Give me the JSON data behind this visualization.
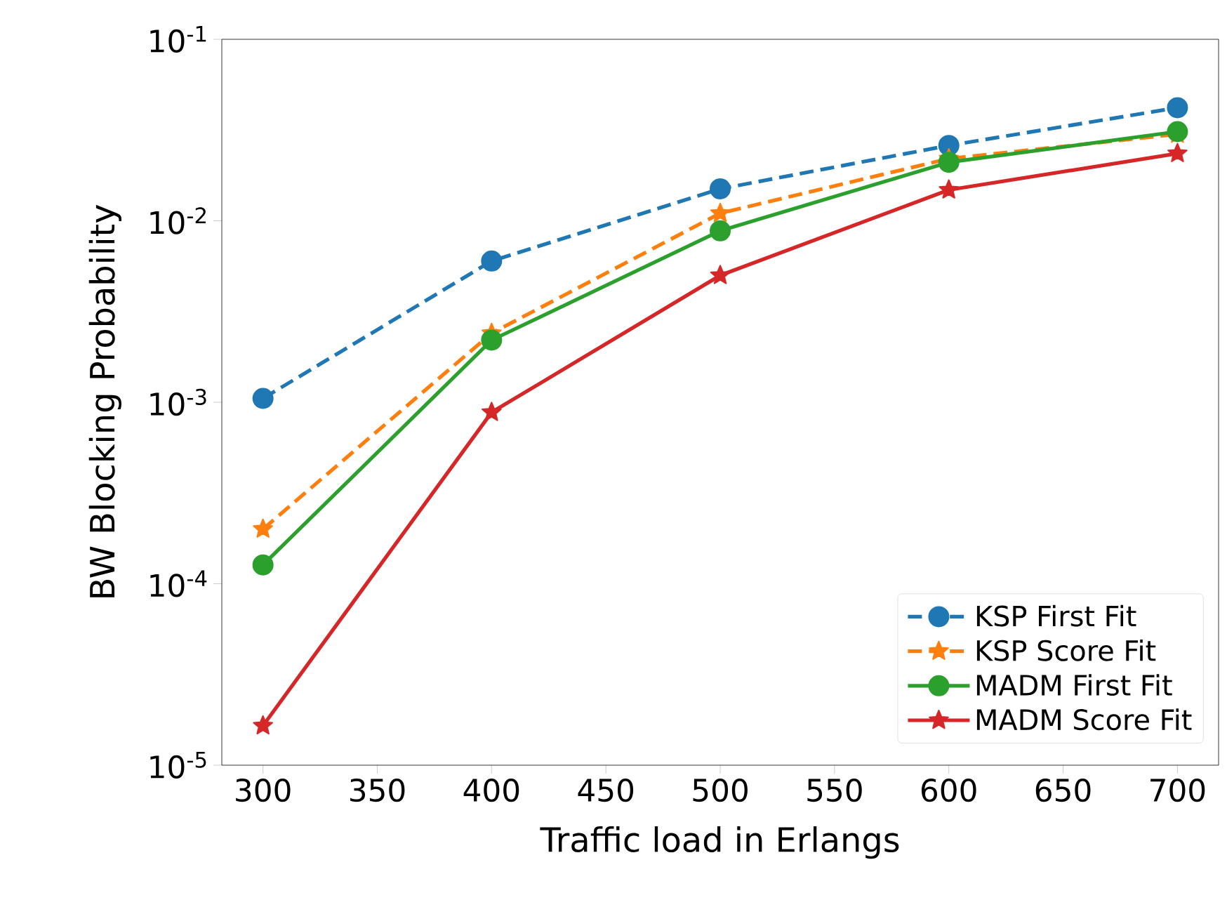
{
  "chart_data": {
    "type": "line",
    "xlabel": "Traffic load in Erlangs",
    "ylabel": "BW Blocking Probability",
    "log": "y",
    "x": [
      300,
      400,
      500,
      600,
      700
    ],
    "xlim": [
      282,
      718
    ],
    "xticks": [
      300,
      350,
      400,
      450,
      500,
      550,
      600,
      650,
      700
    ],
    "ylim": [
      1e-05,
      0.1
    ],
    "yticks": [
      {
        "value": 1e-05,
        "label": "10$^{-5}$"
      },
      {
        "value": 0.0001,
        "label": "10$^{-4}$"
      },
      {
        "value": 0.001,
        "label": "10$^{-3}$"
      },
      {
        "value": 0.01,
        "label": "10$^{-2}$"
      },
      {
        "value": 0.1,
        "label": "10$^{-1}$"
      }
    ],
    "legend": "bottom right",
    "grid": false,
    "series": [
      {
        "name": "KSP First Fit",
        "color": "#1f77b4",
        "marker": "circle",
        "line_style": "dashed",
        "values": [
          0.00105,
          0.006,
          0.015,
          0.026,
          0.042
        ]
      },
      {
        "name": "KSP Score Fit",
        "color": "#ff7f0e",
        "marker": "star",
        "line_style": "dashed",
        "values": [
          0.0002,
          0.0024,
          0.011,
          0.022,
          0.03
        ]
      },
      {
        "name": "MADM First Fit",
        "color": "#2ca02c",
        "marker": "circle",
        "line_style": "solid",
        "values": [
          0.000127,
          0.0022,
          0.0088,
          0.021,
          0.031
        ]
      },
      {
        "name": "MADM Score Fit",
        "color": "#d62728",
        "marker": "star",
        "line_style": "solid",
        "values": [
          1.65e-05,
          0.00088,
          0.005,
          0.0148,
          0.0235
        ]
      }
    ]
  }
}
